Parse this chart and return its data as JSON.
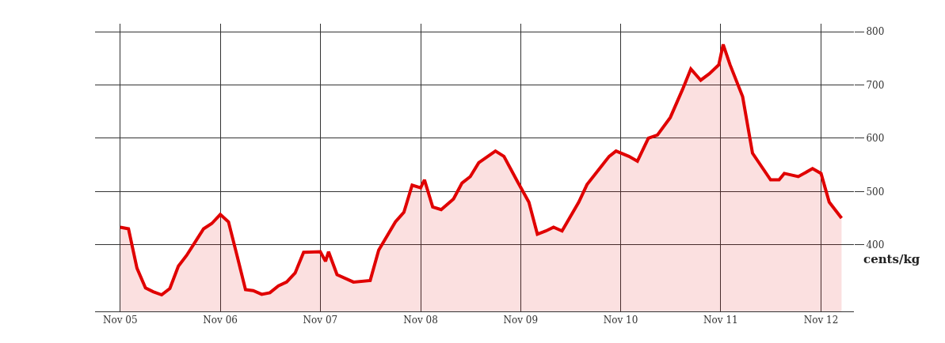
{
  "chart_data": {
    "type": "area",
    "ylabel": "cents/kg",
    "x": [
      "2005-11",
      "2005-12",
      "2006-01",
      "2006-02",
      "2006-03",
      "2006-04",
      "2006-05",
      "2006-06",
      "2006-07",
      "2006-08",
      "2006-09",
      "2006-10",
      "2006-11",
      "2006-12",
      "2007-01",
      "2007-02",
      "2007-03",
      "2007-04",
      "2007-05",
      "2007-06",
      "2007-07",
      "2007-08",
      "2007-09",
      "2007-11-01",
      "2007-11-20",
      "2007-12-01",
      "2008-01",
      "2008-03",
      "2008-05",
      "2008-06",
      "2008-08",
      "2008-09",
      "2008-10",
      "2008-11",
      "2008-11-15",
      "2008-12-15",
      "2009-01-15",
      "2009-03",
      "2009-04",
      "2009-05",
      "2009-06",
      "2009-08",
      "2009-09",
      "2009-10-20",
      "2009-12",
      "2010-01",
      "2010-02",
      "2010-03",
      "2010-04",
      "2010-06",
      "2010-07",
      "2010-09-20",
      "2010-10-15",
      "2010-12",
      "2011-01",
      "2011-02-10",
      "2011-03-15",
      "2011-05",
      "2011-06-15",
      "2011-07-15",
      "2011-08-20",
      "2011-09-20",
      "2011-10-25",
      "2011-11-10",
      "2011-12-05",
      "2012-01-20",
      "2012-02-25",
      "2012-05",
      "2012-06",
      "2012-06-20",
      "2012-08-10",
      "2012-10",
      "2012-11",
      "2012-12",
      "2013-01-15"
    ],
    "series": [
      {
        "color": "#e00000",
        "values": [
          433,
          430,
          356,
          319,
          312,
          306,
          318,
          360,
          380,
          405,
          430,
          440,
          457,
          443,
          380,
          316,
          314,
          307,
          310,
          323,
          330,
          347,
          386,
          387,
          369,
          387,
          344,
          330,
          333,
          390,
          443,
          461,
          512,
          507,
          522,
          471,
          466,
          486,
          516,
          528,
          554,
          576,
          566,
          519,
          480,
          420,
          426,
          433,
          426,
          480,
          513,
          566,
          576,
          566,
          557,
          600,
          606,
          639,
          692,
          730,
          709,
          721,
          738,
          776,
          738,
          678,
          572,
          522,
          522,
          534,
          528,
          543,
          534,
          480,
          450
        ]
      }
    ],
    "xlim": [
      "2005-08",
      "2013-03"
    ],
    "xticks": [
      {
        "value": "2005-11",
        "label": "Nov 05"
      },
      {
        "value": "2006-11",
        "label": "Nov 06"
      },
      {
        "value": "2007-11",
        "label": "Nov 07"
      },
      {
        "value": "2008-11",
        "label": "Nov 08"
      },
      {
        "value": "2009-11",
        "label": "Nov 09"
      },
      {
        "value": "2010-11",
        "label": "Nov 10"
      },
      {
        "value": "2011-11",
        "label": "Nov 11"
      },
      {
        "value": "2012-11",
        "label": "Nov 12"
      }
    ],
    "ylim": [
      275,
      815
    ],
    "yticks": [
      400,
      500,
      600,
      700,
      800
    ],
    "grid": true,
    "line_style": "solid"
  }
}
